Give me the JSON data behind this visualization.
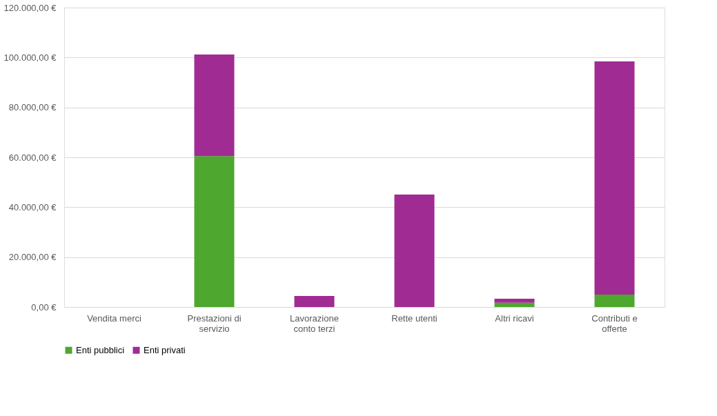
{
  "chart_data": {
    "type": "bar",
    "stacked": true,
    "categories": [
      "Vendita merci",
      "Prestazioni di servizio",
      "Lavorazione conto terzi",
      "Rette utenti",
      "Altri ricavi",
      "Contributi e offerte"
    ],
    "series": [
      {
        "name": "Enti pubblici",
        "color": "#4ea72e",
        "values": [
          0,
          60500,
          0,
          0,
          1700,
          5000
        ]
      },
      {
        "name": "Enti privati",
        "color": "#a02b93",
        "values": [
          0,
          40700,
          4400,
          45100,
          1600,
          93400
        ]
      }
    ],
    "ylim": [
      0,
      120000
    ],
    "yticks": [
      {
        "value": 0,
        "label": "0,00 €"
      },
      {
        "value": 20000,
        "label": "20.000,00 €"
      },
      {
        "value": 40000,
        "label": "40.000,00 €"
      },
      {
        "value": 60000,
        "label": "60.000,00 €"
      },
      {
        "value": 80000,
        "label": "80.000,00 €"
      },
      {
        "value": 100000,
        "label": "100.000,00 €"
      },
      {
        "value": 120000,
        "label": "120.000,00 €"
      }
    ],
    "grid": "y",
    "legend": "bottom"
  }
}
